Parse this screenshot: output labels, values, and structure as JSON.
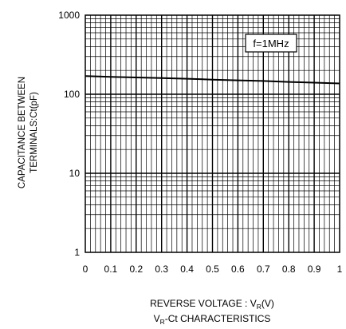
{
  "chart_data": {
    "type": "line",
    "x_label": "REVERSE VOLTAGE : V",
    "x_label_sub": "R",
    "x_label_unit": "(V)",
    "caption_main": "V",
    "caption_sub": "R",
    "caption_rest": "-Ct CHARACTERISTICS",
    "y_label_line1": "CAPACITANCE BETWEEN",
    "y_label_line2": "TERMINALS:Ct(pF)",
    "annotation": "f=1MHz",
    "y_scale": "log",
    "grid": true,
    "xlim": [
      0,
      1
    ],
    "ylim": [
      1,
      1000
    ],
    "x_ticks": [
      "0",
      "0.1",
      "0.2",
      "0.3",
      "0.4",
      "0.5",
      "0.6",
      "0.7",
      "0.8",
      "0.9",
      "1"
    ],
    "y_ticks": [
      "1",
      "10",
      "100",
      "1000"
    ],
    "series": [
      {
        "x": [
          0,
          0.1,
          0.2,
          0.3,
          0.4,
          0.5,
          0.6,
          0.7,
          0.8,
          0.9,
          1.0
        ],
        "y": [
          170,
          166,
          163,
          160,
          157,
          153,
          150,
          147,
          143,
          140,
          137
        ]
      }
    ]
  }
}
